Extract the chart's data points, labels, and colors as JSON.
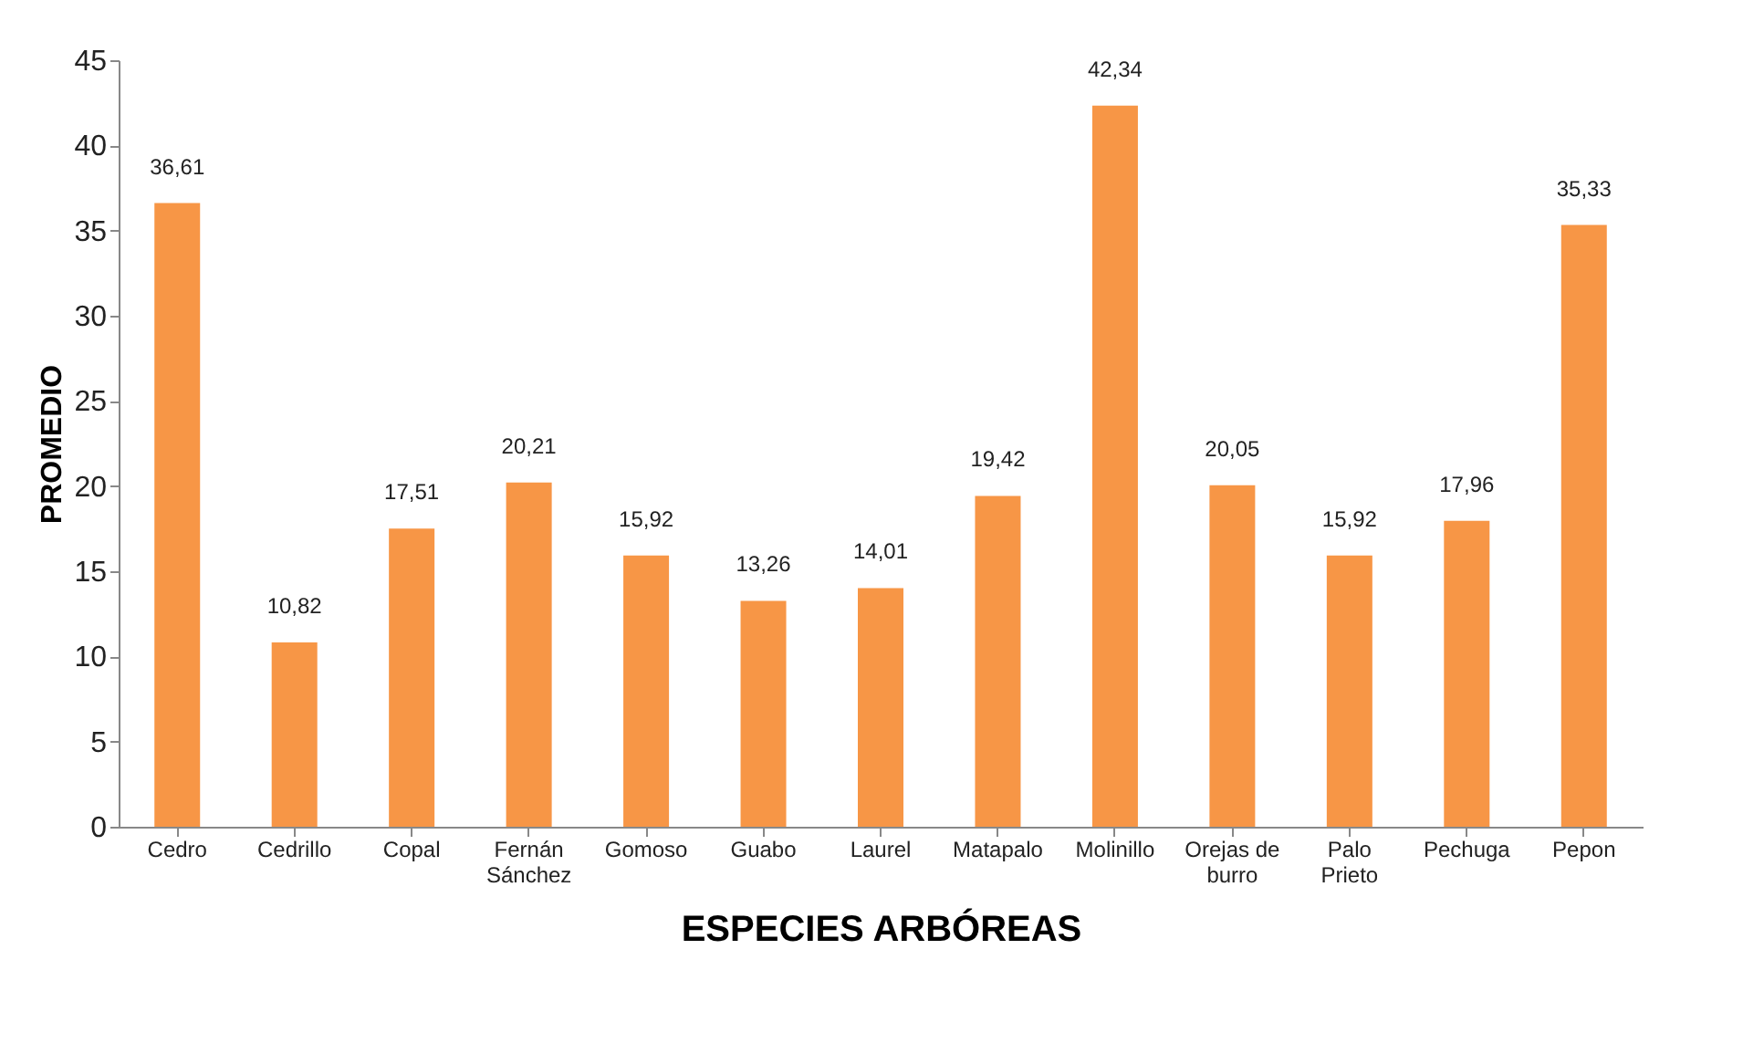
{
  "chart_data": {
    "type": "bar",
    "xlabel": "ESPECIES ARBÓREAS",
    "ylabel": "PROMEDIO",
    "categories": [
      "Cedro",
      "Cedrillo",
      "Copal",
      "Fernán Sánchez",
      "Gomoso",
      "Guabo",
      "Laurel",
      "Matapalo",
      "Molinillo",
      "Orejas de burro",
      "Palo Prieto",
      "Pechuga",
      "Pepon"
    ],
    "values": [
      36.61,
      10.82,
      17.51,
      20.21,
      15.92,
      13.26,
      14.01,
      19.42,
      42.34,
      20.05,
      15.92,
      17.96,
      35.33
    ],
    "value_labels": [
      "36,61",
      "10,82",
      "17,51",
      "20,21",
      "15,92",
      "13,26",
      "14,01",
      "19,42",
      "42,34",
      "20,05",
      "15,92",
      "17,96",
      "35,33"
    ],
    "color": "#f79646",
    "ylim": [
      0,
      45
    ],
    "yticks": [
      0,
      5,
      10,
      15,
      20,
      25,
      30,
      35,
      40,
      45
    ],
    "grid": false
  }
}
